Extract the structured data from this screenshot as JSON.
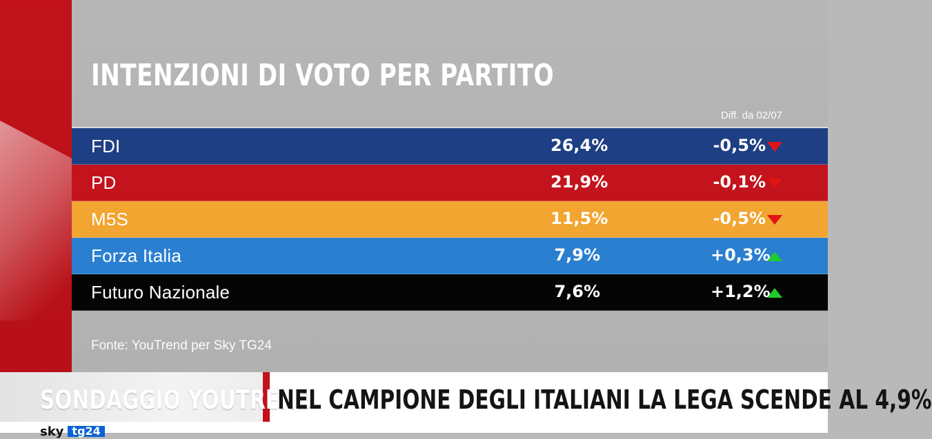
{
  "chart_data": {
    "type": "table",
    "title": "INTENZIONI DI VOTO PER PARTITO",
    "diff_header": "Diff. da 02/07",
    "rows": [
      {
        "party": "FDI",
        "value": "26,4%",
        "delta": "-0,5%",
        "trend": "down",
        "color": "#1e3f84"
      },
      {
        "party": "PD",
        "value": "21,9%",
        "delta": "-0,1%",
        "trend": "down",
        "color": "#c3131c"
      },
      {
        "party": "M5S",
        "value": "11,5%",
        "delta": "-0,5%",
        "trend": "down",
        "color": "#f2a530"
      },
      {
        "party": "Forza Italia",
        "value": "7,9%",
        "delta": "+0,3%",
        "trend": "up",
        "color": "#2a7fd0"
      },
      {
        "party": "Futuro Nazionale",
        "value": "7,6%",
        "delta": "+1,2%",
        "trend": "up",
        "color": "#050505"
      }
    ],
    "source": "Fonte: YouTrend per Sky TG24",
    "colors": {
      "down": "#e11414",
      "up": "#1dcc2b"
    }
  },
  "banner": {
    "label": "SONDAGGIO YOUTREND",
    "headline": "NEL CAMPIONE DEGLI ITALIANI LA LEGA SCENDE AL 4,9%"
  },
  "logo": {
    "sky": "sky",
    "tg": "tg24"
  }
}
